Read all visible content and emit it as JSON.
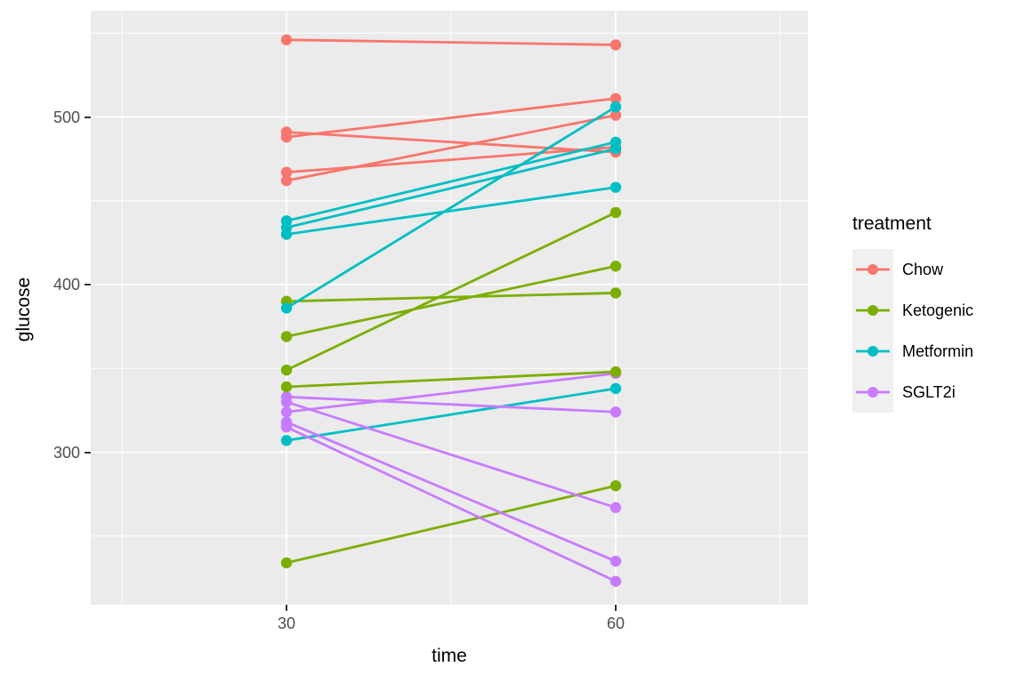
{
  "figure": {
    "panel_background": "#EBEBEB",
    "grid_color": "#FFFFFF",
    "axis_text_color": "#4D4D4D",
    "axis_title_color": "#000000",
    "tick_mark_color": "#333333",
    "legend_key_background": "#F0F0F0"
  },
  "chart_data": {
    "type": "line",
    "title": "",
    "xlabel": "time",
    "ylabel": "glucose",
    "legend_title": "treatment",
    "legend_position": "right",
    "grid": "on",
    "x_ticks": [
      30,
      60
    ],
    "y_ticks": [
      300,
      400,
      500
    ],
    "x_minor_ticks": [
      15,
      45,
      75
    ],
    "y_minor_ticks": [
      250,
      350,
      450,
      550
    ],
    "xlim": [
      12,
      78
    ],
    "ylim": [
      209,
      563
    ],
    "x": [
      30,
      60
    ],
    "series": [
      {
        "name": "Chow",
        "color": "#F8766D",
        "pairs": [
          [
            546,
            543
          ],
          [
            491,
            479
          ],
          [
            488,
            511
          ],
          [
            467,
            482
          ],
          [
            462,
            501
          ]
        ]
      },
      {
        "name": "Ketogenic",
        "color": "#7CAE00",
        "pairs": [
          [
            390,
            395
          ],
          [
            369,
            411
          ],
          [
            349,
            443
          ],
          [
            339,
            348
          ],
          [
            234,
            280
          ]
        ]
      },
      {
        "name": "Metformin",
        "color": "#00BFC4",
        "pairs": [
          [
            438,
            485
          ],
          [
            434,
            481
          ],
          [
            430,
            458
          ],
          [
            386,
            506
          ],
          [
            307,
            338
          ]
        ]
      },
      {
        "name": "SGLT2i",
        "color": "#C77CFF",
        "pairs": [
          [
            333,
            324
          ],
          [
            330,
            267
          ],
          [
            324,
            347
          ],
          [
            318,
            235
          ],
          [
            315,
            223
          ]
        ]
      }
    ]
  }
}
